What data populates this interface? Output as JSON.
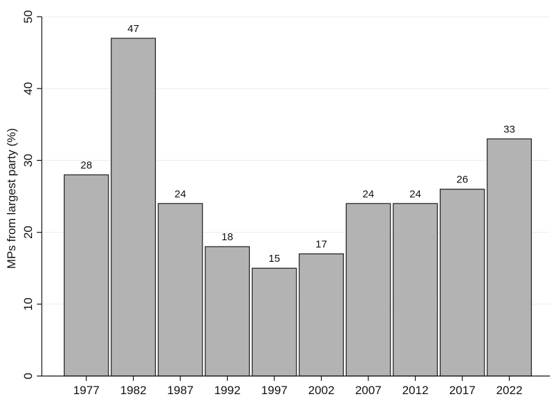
{
  "chart_data": {
    "type": "bar",
    "title": "",
    "xlabel": "",
    "ylabel": "MPs from largest party (%)",
    "categories": [
      "1977",
      "1982",
      "1987",
      "1992",
      "1997",
      "2002",
      "2007",
      "2012",
      "2017",
      "2022"
    ],
    "values": [
      28,
      47,
      24,
      18,
      15,
      17,
      24,
      24,
      26,
      33
    ],
    "value_labels": [
      "28",
      "47",
      "24",
      "18",
      "15",
      "17",
      "24",
      "24",
      "26",
      "33"
    ],
    "ylim": [
      0,
      50
    ],
    "yticks": [
      0,
      10,
      20,
      30,
      40,
      50
    ],
    "ytick_labels": [
      "0",
      "10",
      "20",
      "30",
      "40",
      "50"
    ],
    "grid": true,
    "legend": "none",
    "colors": {
      "bar_fill": "#b3b3b3",
      "bar_stroke": "#1a1a1a",
      "grid": "#ececec",
      "axis": "#111111"
    }
  }
}
